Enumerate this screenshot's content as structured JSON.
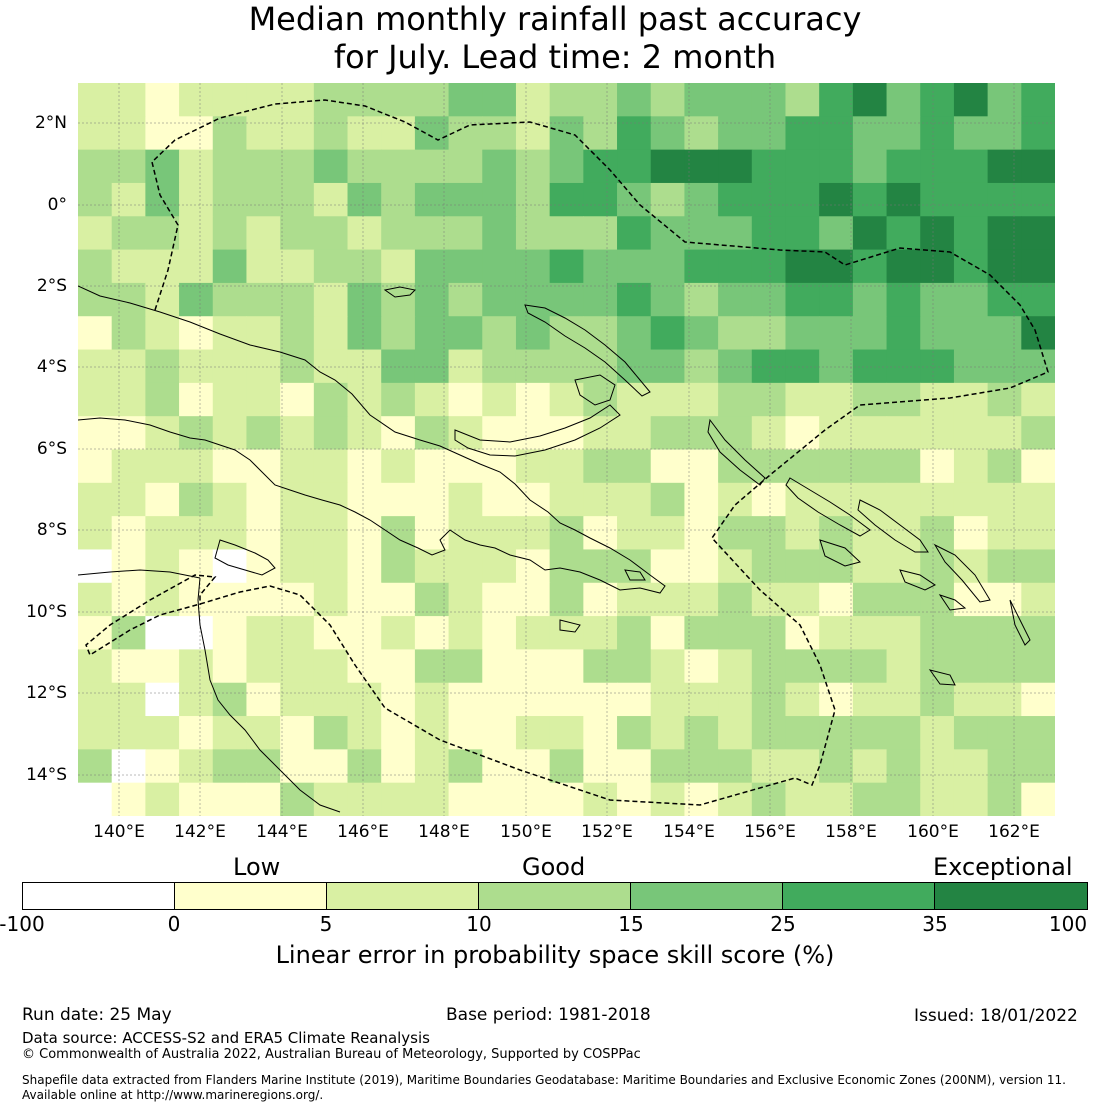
{
  "title": {
    "line1": "Median monthly rainfall past accuracy",
    "line2": "for July. Lead time: 2 month"
  },
  "map": {
    "lat_labels": [
      "2°N",
      "0°",
      "2°S",
      "4°S",
      "6°S",
      "8°S",
      "10°S",
      "12°S",
      "14°S"
    ],
    "lon_labels": [
      "140°E",
      "142°E",
      "144°E",
      "146°E",
      "148°E",
      "150°E",
      "152°E",
      "154°E",
      "156°E",
      "158°E",
      "160°E",
      "162°E"
    ],
    "extent": {
      "lon_min": 139.0,
      "lon_max": 163.0,
      "lat_min": -15.0,
      "lat_max": 3.0
    }
  },
  "legend": {
    "categories": [
      "Low",
      "Good",
      "Exceptional"
    ],
    "tick_labels": [
      "-100",
      "0",
      "5",
      "10",
      "15",
      "25",
      "35",
      "100"
    ],
    "colors": [
      "#ffffff",
      "#ffffcc",
      "#d9f0a3",
      "#addd8e",
      "#78c679",
      "#41ab5d",
      "#238443"
    ],
    "axis_label": "Linear error in probability space skill score (%)"
  },
  "footer": {
    "run_date": "Run date: 25 May",
    "base_period": "Base period: 1981-2018",
    "issued": "Issued: 18/01/2022",
    "data_source": "Data source: ACCESS-S2 and ERA5 Climate Reanalysis",
    "copyright": "© Commonwealth of Australia 2022, Australian Bureau of Meteorology, Supported by COSPPac",
    "shapefile_line1": "Shapefile data extracted from Flanders Marine Institute (2019), Maritime Boundaries Geodatabase: Maritime Boundaries and Exclusive Economic Zones (200NM), version 11.",
    "shapefile_line2": "Available online at http://www.marineregions.org/."
  }
}
